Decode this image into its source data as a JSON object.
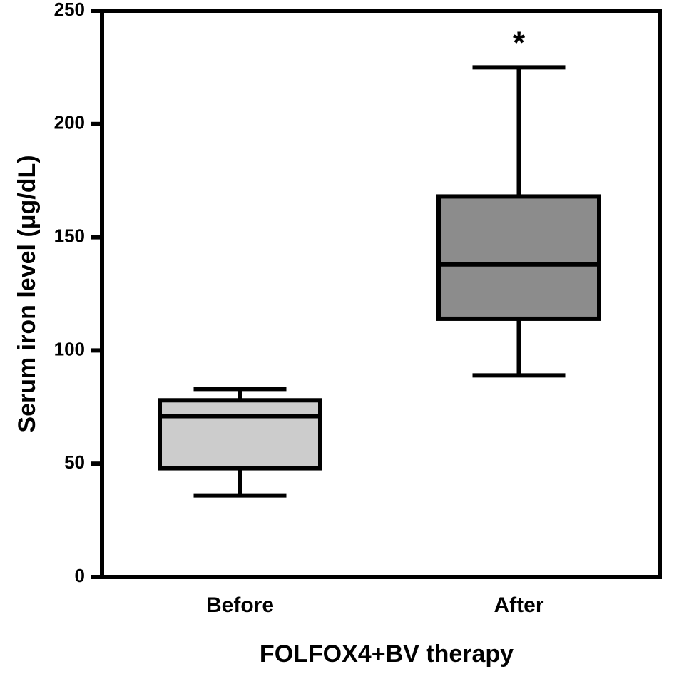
{
  "chart_data": {
    "type": "box",
    "title": "",
    "xlabel": "FOLFOX4+BV therapy",
    "ylabel": "Serum iron level (μg/dL)",
    "ylim": [
      0,
      250
    ],
    "yticks": [
      "0",
      "50",
      "100",
      "150",
      "200",
      "250"
    ],
    "grid": false,
    "categories": [
      "Before",
      "After"
    ],
    "boxes": [
      {
        "category": "Before",
        "whisker_low": 36,
        "q1": 48,
        "median": 71,
        "q3": 78,
        "whisker_high": 83,
        "fill": "#cccccc",
        "annotation": ""
      },
      {
        "category": "After",
        "whisker_low": 89,
        "q1": 114,
        "median": 138,
        "q3": 168,
        "whisker_high": 225,
        "fill": "#8c8c8c",
        "annotation": "*"
      }
    ]
  }
}
